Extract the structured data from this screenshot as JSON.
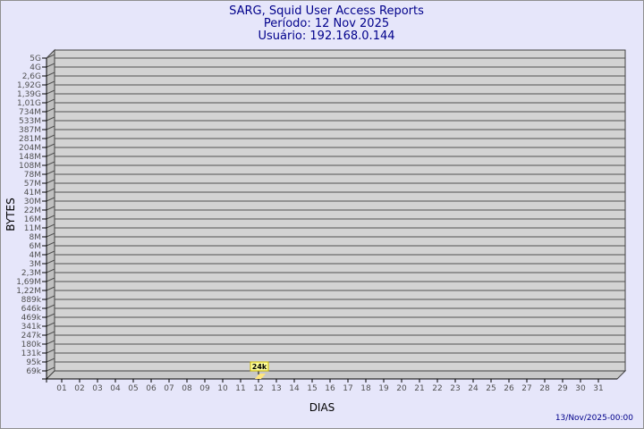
{
  "title": [
    "SARG, Squid User Access Reports",
    "Período: 12 Nov 2025",
    "Usuário: 192.168.0.144"
  ],
  "footer_date": "13/Nov/2025-00:00",
  "colors": {
    "background": "#e6e6fa",
    "title": "#00008b",
    "wall": "#d3d3d3",
    "bar": "#ffe680",
    "label_box": "#ffff99"
  },
  "chart_data": {
    "type": "bar",
    "xlabel": "DIAS",
    "ylabel": "BYTES",
    "y_scale": "log",
    "y_tick_labels": [
      "5G",
      "4G",
      "2,6G",
      "1,92G",
      "1,39G",
      "1,01G",
      "734M",
      "533M",
      "387M",
      "281M",
      "204M",
      "148M",
      "108M",
      "78M",
      "57M",
      "41M",
      "30M",
      "22M",
      "16M",
      "11M",
      "8M",
      "6M",
      "4M",
      "3M",
      "2,3M",
      "1,69M",
      "1,22M",
      "889k",
      "646k",
      "469k",
      "341k",
      "247k",
      "180k",
      "131k",
      "95k",
      "69k"
    ],
    "categories": [
      "01",
      "02",
      "03",
      "04",
      "05",
      "06",
      "07",
      "08",
      "09",
      "10",
      "11",
      "12",
      "13",
      "14",
      "15",
      "16",
      "17",
      "18",
      "19",
      "20",
      "21",
      "22",
      "23",
      "24",
      "25",
      "26",
      "27",
      "28",
      "29",
      "30",
      "31"
    ],
    "bars": [
      {
        "day": "12",
        "value": 24000,
        "label": "24k"
      }
    ],
    "grid": true
  }
}
